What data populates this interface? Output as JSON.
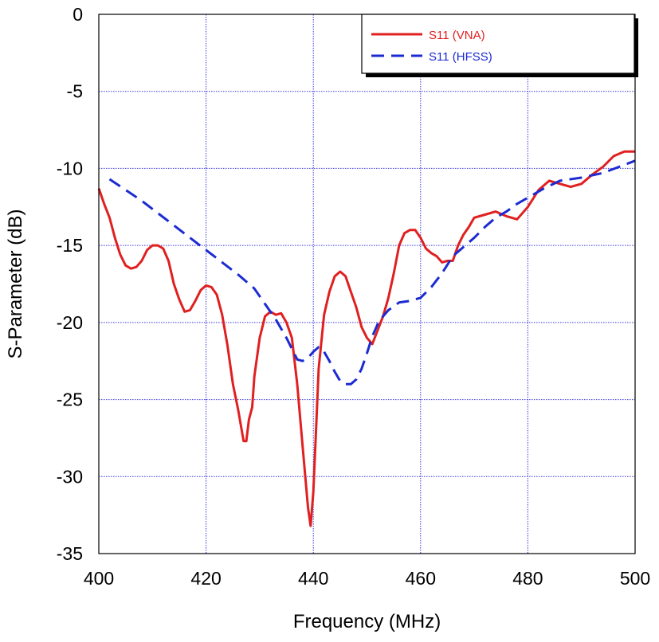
{
  "chart_data": {
    "type": "line",
    "title": "",
    "xlabel": "Frequency (MHz)",
    "ylabel": "S-Parameter (dB)",
    "xlim": [
      400,
      500
    ],
    "ylim": [
      -35,
      0
    ],
    "xticks": [
      400,
      420,
      440,
      460,
      480,
      500
    ],
    "yticks": [
      0,
      -5,
      -10,
      -15,
      -20,
      -25,
      -30,
      -35
    ],
    "grid": true,
    "legend_position": "top-right",
    "series": [
      {
        "name": "S11 (VNA)",
        "color": "#e02020",
        "style": "solid",
        "x": [
          400,
          401,
          402,
          403,
          404,
          405,
          406,
          407,
          408,
          409,
          410,
          411,
          412,
          413,
          414,
          415,
          416,
          417,
          418,
          419,
          420,
          421,
          422,
          423,
          424,
          425,
          426,
          427,
          427.5,
          428,
          428.6,
          429,
          430,
          431,
          432,
          433,
          434,
          435,
          436,
          437,
          438,
          439,
          439.5,
          440,
          440.5,
          441,
          442,
          443,
          444,
          445,
          446,
          447,
          448,
          449,
          450,
          451,
          452,
          453,
          454,
          455,
          456,
          457,
          458,
          459,
          460,
          461,
          462,
          463,
          464,
          465,
          466,
          467,
          468,
          469,
          470,
          472,
          474,
          476,
          478,
          480,
          482,
          484,
          486,
          488,
          490,
          492,
          494,
          496,
          498,
          500
        ],
        "values": [
          -11.3,
          -12.3,
          -13.2,
          -14.5,
          -15.6,
          -16.3,
          -16.5,
          -16.4,
          -16.0,
          -15.3,
          -15.0,
          -15.0,
          -15.2,
          -16.0,
          -17.5,
          -18.5,
          -19.3,
          -19.2,
          -18.6,
          -17.9,
          -17.6,
          -17.7,
          -18.2,
          -19.5,
          -21.5,
          -24.0,
          -25.7,
          -27.7,
          -27.7,
          -26.3,
          -25.5,
          -23.5,
          -21.0,
          -19.6,
          -19.3,
          -19.5,
          -19.4,
          -20.0,
          -21.0,
          -24.0,
          -28.0,
          -32.0,
          -33.2,
          -31.0,
          -27.0,
          -23.0,
          -19.5,
          -18.0,
          -17.0,
          -16.7,
          -17.0,
          -18.0,
          -19.0,
          -20.3,
          -21.0,
          -21.4,
          -20.5,
          -19.6,
          -18.4,
          -16.8,
          -15.0,
          -14.2,
          -14.0,
          -14.0,
          -14.5,
          -15.2,
          -15.5,
          -15.7,
          -16.1,
          -16.0,
          -16.0,
          -15.0,
          -14.3,
          -13.8,
          -13.2,
          -13.0,
          -12.8,
          -13.1,
          -13.3,
          -12.5,
          -11.4,
          -10.8,
          -11.0,
          -11.2,
          -11.0,
          -10.4,
          -9.9,
          -9.2,
          -8.9,
          -8.9
        ]
      },
      {
        "name": "S11 (HFSS)",
        "color": "#1c2bd1",
        "style": "dashed",
        "x": [
          402,
          405,
          408,
          411,
          414,
          417,
          420,
          423,
          426,
          429,
          431,
          433,
          435,
          437,
          438,
          439,
          440,
          441,
          442,
          443,
          444,
          445,
          446,
          447,
          448,
          449,
          450,
          451,
          452,
          453,
          454,
          456,
          458,
          460,
          462,
          464,
          466,
          468,
          470,
          472,
          474,
          476,
          478,
          480,
          483,
          486,
          490,
          494,
          497,
          500
        ],
        "values": [
          -10.7,
          -11.4,
          -12.1,
          -12.9,
          -13.7,
          -14.5,
          -15.3,
          -16.1,
          -16.9,
          -17.8,
          -18.8,
          -19.8,
          -21.0,
          -22.4,
          -22.5,
          -22.3,
          -21.9,
          -21.6,
          -21.9,
          -22.5,
          -23.2,
          -23.8,
          -24.0,
          -24.0,
          -23.7,
          -23.0,
          -22.0,
          -20.9,
          -20.1,
          -19.6,
          -19.2,
          -18.7,
          -18.6,
          -18.4,
          -17.7,
          -16.8,
          -15.7,
          -15.1,
          -14.5,
          -13.8,
          -13.2,
          -12.8,
          -12.3,
          -11.9,
          -11.3,
          -10.8,
          -10.6,
          -10.3,
          -9.9,
          -9.5
        ]
      }
    ]
  }
}
